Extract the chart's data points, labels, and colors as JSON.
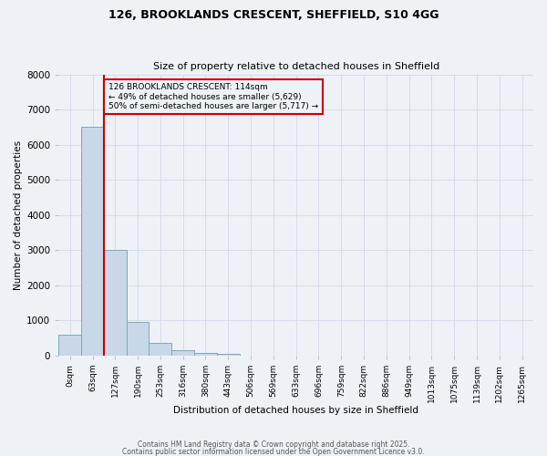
{
  "title_line1": "126, BROOKLANDS CRESCENT, SHEFFIELD, S10 4GG",
  "title_line2": "Size of property relative to detached houses in Sheffield",
  "xlabel": "Distribution of detached houses by size in Sheffield",
  "ylabel": "Number of detached properties",
  "bar_labels": [
    "0sqm",
    "63sqm",
    "127sqm",
    "190sqm",
    "253sqm",
    "316sqm",
    "380sqm",
    "443sqm",
    "506sqm",
    "569sqm",
    "633sqm",
    "696sqm",
    "759sqm",
    "822sqm",
    "886sqm",
    "949sqm",
    "1013sqm",
    "1075sqm",
    "1139sqm",
    "1202sqm",
    "1265sqm"
  ],
  "bar_values": [
    600,
    6500,
    3000,
    950,
    350,
    150,
    80,
    50,
    0,
    0,
    0,
    0,
    0,
    0,
    0,
    0,
    0,
    0,
    0,
    0,
    0
  ],
  "bar_color": "#c8d8e8",
  "bar_edgecolor": "#7aaabb",
  "vline_color": "#cc0000",
  "annotation_title": "126 BROOKLANDS CRESCENT: 114sqm",
  "annotation_line2": "← 49% of detached houses are smaller (5,629)",
  "annotation_line3": "50% of semi-detached houses are larger (5,717) →",
  "annotation_box_color": "#cc0000",
  "annotation_text_color": "#000000",
  "ylim": [
    0,
    8000
  ],
  "yticks": [
    0,
    1000,
    2000,
    3000,
    4000,
    5000,
    6000,
    7000,
    8000
  ],
  "grid_color": "#d0d8e8",
  "background_color": "#eef2f7",
  "footer_line1": "Contains HM Land Registry data © Crown copyright and database right 2025.",
  "footer_line2": "Contains public sector information licensed under the Open Government Licence v3.0."
}
